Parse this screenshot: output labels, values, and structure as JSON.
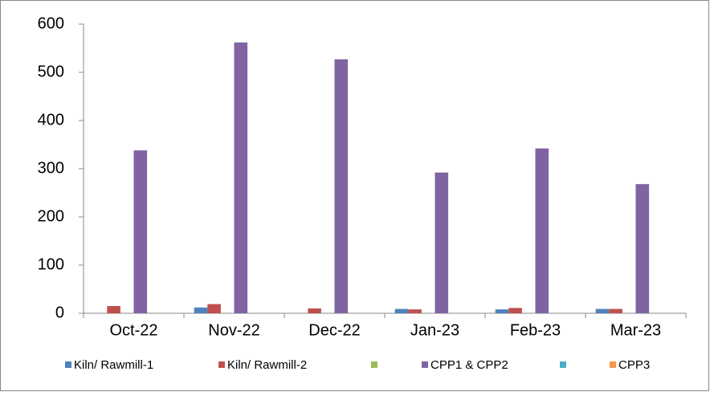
{
  "chart_data": {
    "type": "bar",
    "categories": [
      "Oct-22",
      "Nov-22",
      "Dec-22",
      "Jan-23",
      "Feb-23",
      "Mar-23"
    ],
    "series": [
      {
        "name": "Kiln/ Rawmill-1",
        "color": "#4f81bd",
        "values": [
          0,
          12,
          0,
          9,
          8,
          9
        ]
      },
      {
        "name": "Kiln/ Rawmill-2",
        "color": "#c0504d",
        "values": [
          15,
          19,
          10,
          8,
          11,
          9
        ]
      },
      {
        "name": null,
        "color": "#9bbb59",
        "values": [
          0,
          0,
          0,
          0,
          0,
          0
        ]
      },
      {
        "name": "CPP1 & CPP2",
        "color": "#8064a2",
        "values": [
          338,
          562,
          527,
          292,
          342,
          268
        ]
      },
      {
        "name": null,
        "color": "#4bacc6",
        "values": [
          0,
          0,
          0,
          0,
          0,
          0
        ]
      },
      {
        "name": "CPP3",
        "color": "#f79646",
        "values": [
          0,
          0,
          0,
          0,
          0,
          0
        ]
      }
    ],
    "ylim": [
      0,
      600
    ],
    "yticks": [
      0,
      100,
      200,
      300,
      400,
      500,
      600
    ],
    "grid": false,
    "legend": "bottom"
  }
}
